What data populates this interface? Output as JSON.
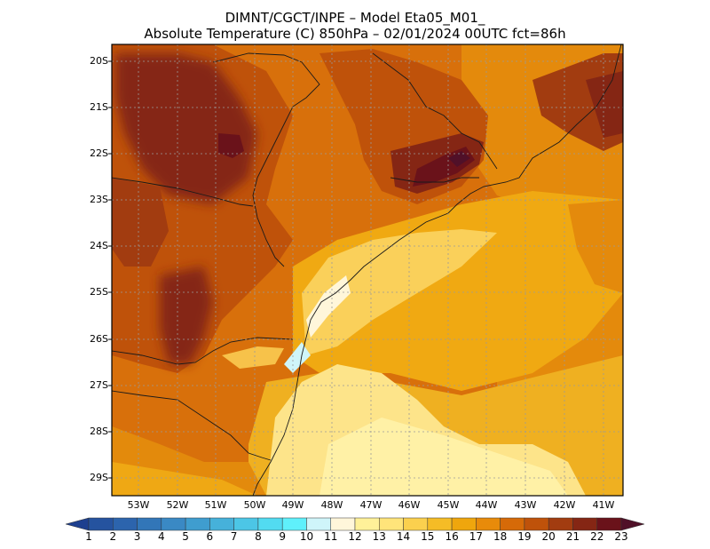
{
  "title_line1": "DIMNT/CGCT/INPE –  Model Eta05_M01_",
  "title_line2": "Absolute Temperature (C) 850hPa –  02/01/2024 00UTC fct=86h",
  "lat_labels": [
    "20S",
    "21S",
    "22S",
    "23S",
    "24S",
    "25S",
    "26S",
    "27S",
    "28S",
    "29S"
  ],
  "lon_labels": [
    "53W",
    "52W",
    "51W",
    "50W",
    "49W",
    "48W",
    "47W",
    "46W",
    "45W",
    "44W",
    "43W",
    "42W",
    "41W"
  ],
  "colorbar": {
    "labels": [
      "1",
      "2",
      "3",
      "4",
      "5",
      "6",
      "7",
      "8",
      "9",
      "10",
      "11",
      "12",
      "13",
      "14",
      "15",
      "16",
      "17",
      "18",
      "19",
      "20",
      "21",
      "22",
      "23"
    ],
    "colors": [
      "#1d3f8f",
      "#25539f",
      "#2c64ad",
      "#3276b8",
      "#3a89c4",
      "#3f9dcf",
      "#46b1da",
      "#4cc6e6",
      "#52dbf1",
      "#5ff0fb",
      "#cff5fa",
      "#fff6da",
      "#fff199",
      "#ffe47a",
      "#fbd04e",
      "#f5bc26",
      "#efa60d",
      "#e88b0a",
      "#d66a08",
      "#bf520a",
      "#a23c10",
      "#852614",
      "#6a121a",
      "#501028"
    ]
  }
}
